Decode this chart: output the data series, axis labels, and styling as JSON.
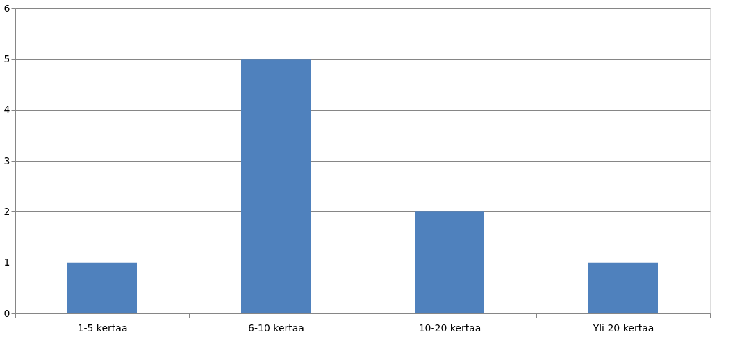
{
  "chart_data": {
    "type": "bar",
    "categories": [
      "1-5 kertaa",
      "6-10 kertaa",
      "10-20 kertaa",
      "Yli 20 kertaa"
    ],
    "values": [
      1,
      5,
      2,
      1
    ],
    "color": "#4f81bd",
    "ylim": [
      0,
      6
    ],
    "yticks": [
      0,
      1,
      2,
      3,
      4,
      5,
      6
    ],
    "grid": "y"
  }
}
